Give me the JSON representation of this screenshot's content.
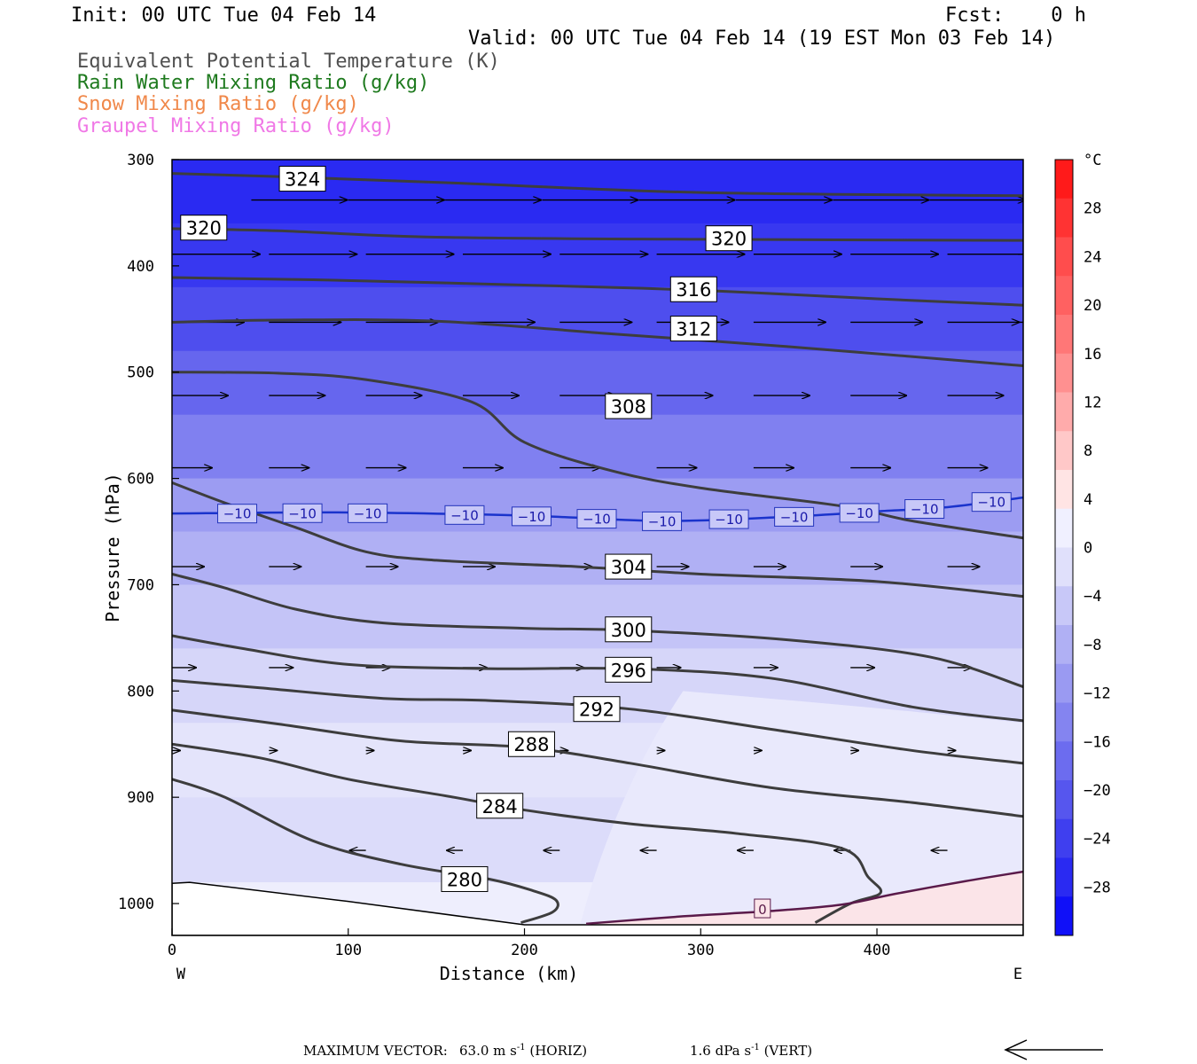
{
  "header": {
    "init": "Init: 00 UTC Tue 04 Feb 14",
    "fcst": "Fcst:    0 h",
    "valid": "Valid: 00 UTC Tue 04 Feb 14 (19 EST Mon 03 Feb 14)",
    "legend": [
      {
        "text": "Equivalent Potential Temperature (K)",
        "color": "#505050"
      },
      {
        "text": "Rain Water Mixing Ratio (g/kg)",
        "color": "#1e7a1e"
      },
      {
        "text": "Snow Mixing Ratio (g/kg)",
        "color": "#f0884a"
      },
      {
        "text": "Graupel Mixing Ratio (g/kg)",
        "color": "#f078e6"
      }
    ]
  },
  "chart_data": {
    "type": "contour-cross-section",
    "xlabel": "Distance (km)",
    "ylabel": "Pressure (hPa)",
    "xlim": [
      0,
      483
    ],
    "ylim": [
      300,
      1030
    ],
    "y_scale": "linear (pressure increases downward)",
    "x_ticks": [
      0,
      100,
      200,
      300,
      400
    ],
    "y_ticks": [
      300,
      400,
      500,
      600,
      700,
      800,
      900,
      1000
    ],
    "x_end_labels": {
      "left": "W",
      "right": "E"
    },
    "colorbar": {
      "unit": "°C",
      "ticks": [
        28,
        24,
        20,
        16,
        12,
        8,
        4,
        0,
        -4,
        -8,
        -12,
        -16,
        -20,
        -24,
        -28
      ]
    },
    "theta_e_contours": [
      {
        "label": "324",
        "points": [
          [
            0,
            313
          ],
          [
            60,
            316
          ],
          [
            160,
            322
          ],
          [
            300,
            331
          ],
          [
            483,
            334
          ]
        ]
      },
      {
        "label": "320",
        "points": [
          [
            0,
            365
          ],
          [
            60,
            367
          ],
          [
            150,
            373
          ],
          [
            300,
            375
          ],
          [
            483,
            376
          ]
        ]
      },
      {
        "label": "316",
        "points": [
          [
            0,
            411
          ],
          [
            80,
            413
          ],
          [
            200,
            418
          ],
          [
            300,
            423
          ],
          [
            400,
            431
          ],
          [
            483,
            437
          ]
        ]
      },
      {
        "label": "312",
        "points": [
          [
            0,
            453
          ],
          [
            60,
            451
          ],
          [
            150,
            452
          ],
          [
            250,
            464
          ],
          [
            350,
            476
          ],
          [
            483,
            494
          ]
        ]
      },
      {
        "label": "308",
        "points": [
          [
            0,
            500
          ],
          [
            60,
            501
          ],
          [
            110,
            507
          ],
          [
            170,
            528
          ],
          [
            200,
            566
          ],
          [
            250,
            593
          ],
          [
            300,
            609
          ],
          [
            380,
            626
          ],
          [
            420,
            640
          ],
          [
            483,
            656
          ]
        ]
      },
      {
        "label": "304",
        "points": [
          [
            0,
            604
          ],
          [
            30,
            623
          ],
          [
            70,
            646
          ],
          [
            110,
            669
          ],
          [
            150,
            677
          ],
          [
            230,
            683
          ],
          [
            300,
            690
          ],
          [
            400,
            697
          ],
          [
            483,
            711
          ]
        ]
      },
      {
        "label": "300",
        "points": [
          [
            0,
            690
          ],
          [
            30,
            703
          ],
          [
            70,
            723
          ],
          [
            120,
            736
          ],
          [
            200,
            741
          ],
          [
            260,
            743
          ],
          [
            350,
            752
          ],
          [
            430,
            768
          ],
          [
            483,
            796
          ]
        ]
      },
      {
        "label": "296",
        "points": [
          [
            0,
            748
          ],
          [
            40,
            760
          ],
          [
            100,
            775
          ],
          [
            180,
            779
          ],
          [
            260,
            779
          ],
          [
            340,
            788
          ],
          [
            420,
            815
          ],
          [
            483,
            828
          ]
        ]
      },
      {
        "label": "292",
        "points": [
          [
            0,
            790
          ],
          [
            50,
            797
          ],
          [
            120,
            807
          ],
          [
            180,
            809
          ],
          [
            260,
            817
          ],
          [
            340,
            836
          ],
          [
            420,
            856
          ],
          [
            483,
            868
          ]
        ]
      },
      {
        "label": "288",
        "points": [
          [
            0,
            818
          ],
          [
            60,
            831
          ],
          [
            130,
            847
          ],
          [
            200,
            853
          ],
          [
            260,
            868
          ],
          [
            340,
            891
          ],
          [
            420,
            905
          ],
          [
            483,
            918
          ]
        ]
      },
      {
        "label": "284",
        "points": [
          [
            0,
            850
          ],
          [
            50,
            863
          ],
          [
            100,
            883
          ],
          [
            160,
            900
          ],
          [
            200,
            912
          ],
          [
            260,
            925
          ],
          [
            320,
            934
          ],
          [
            380,
            948
          ],
          [
            395,
            975
          ],
          [
            402,
            990
          ],
          [
            385,
            1000
          ],
          [
            365,
            1018
          ]
        ]
      },
      {
        "label": "280",
        "points": [
          [
            0,
            883
          ],
          [
            30,
            900
          ],
          [
            80,
            941
          ],
          [
            130,
            963
          ],
          [
            180,
            977
          ],
          [
            205,
            988
          ],
          [
            218,
            997
          ],
          [
            216,
            1008
          ],
          [
            198,
            1018
          ]
        ]
      }
    ],
    "temperature_contours": [
      {
        "label": "-10",
        "value": -10,
        "color": "#1a33cc",
        "points": [
          [
            0,
            633
          ],
          [
            100,
            632
          ],
          [
            200,
            635
          ],
          [
            280,
            640
          ],
          [
            350,
            636
          ],
          [
            400,
            631
          ],
          [
            440,
            627
          ],
          [
            483,
            618
          ]
        ]
      },
      {
        "label": "0",
        "value": 0,
        "color": "#5a1a4a",
        "points": [
          [
            235,
            1019
          ],
          [
            290,
            1012
          ],
          [
            340,
            1007
          ],
          [
            380,
            1001
          ],
          [
            410,
            991
          ],
          [
            450,
            979
          ],
          [
            483,
            970
          ]
        ]
      }
    ],
    "wind_rows": [
      {
        "p": 338,
        "len": 12,
        "xs": [
          45,
          100,
          155,
          210,
          265,
          320,
          375,
          430,
          480
        ]
      },
      {
        "p": 389,
        "len": 11,
        "xs": [
          0,
          55,
          110,
          165,
          220,
          275,
          330,
          385,
          440,
          480
        ]
      },
      {
        "p": 453,
        "len": 9,
        "xs": [
          0,
          55,
          110,
          165,
          220,
          275,
          330,
          385,
          440,
          480
        ]
      },
      {
        "p": 522,
        "len": 7,
        "xs": [
          0,
          55,
          110,
          165,
          220,
          275,
          330,
          385,
          440
        ]
      },
      {
        "p": 590,
        "len": 5,
        "xs": [
          0,
          55,
          110,
          165,
          220,
          275,
          330,
          385,
          440
        ]
      },
      {
        "p": 683,
        "len": 4,
        "xs": [
          0,
          55,
          110,
          165,
          220,
          275,
          330,
          385,
          440
        ]
      },
      {
        "p": 778,
        "len": 3,
        "xs": [
          0,
          55,
          110,
          165,
          220,
          275,
          330,
          385,
          440
        ]
      },
      {
        "p": 856,
        "len": 1,
        "xs": [
          0,
          55,
          110,
          165,
          220,
          275,
          330,
          385,
          440
        ]
      },
      {
        "p": 950,
        "len": -2,
        "xs": [
          110,
          165,
          220,
          275,
          330,
          385,
          440
        ]
      }
    ],
    "shading_bands": [
      {
        "p": 300,
        "color": "#2a2af2"
      },
      {
        "p": 360,
        "color": "#3838f0"
      },
      {
        "p": 420,
        "color": "#4e4eee"
      },
      {
        "p": 480,
        "color": "#6666ee"
      },
      {
        "p": 540,
        "color": "#8080f0"
      },
      {
        "p": 600,
        "color": "#9c9cf2"
      },
      {
        "p": 650,
        "color": "#b0b0f4"
      },
      {
        "p": 700,
        "color": "#c4c4f7"
      },
      {
        "p": 760,
        "color": "#d6d6f9"
      },
      {
        "p": 830,
        "color": "#e4e4fb"
      },
      {
        "p": 900,
        "color": "#dcdcfa"
      },
      {
        "p": 980,
        "color": "#eeeefd"
      }
    ],
    "warm_region_color": "#fbe4e8"
  },
  "footer": {
    "max_vector_label": "MAXIMUM VECTOR:",
    "horiz_value": "63.0 m s",
    "horiz_unit_suffix": " (HORIZ)",
    "vert_value": "1.6 dPa s",
    "vert_unit_suffix": " (VERT)",
    "exponent": "-1"
  }
}
